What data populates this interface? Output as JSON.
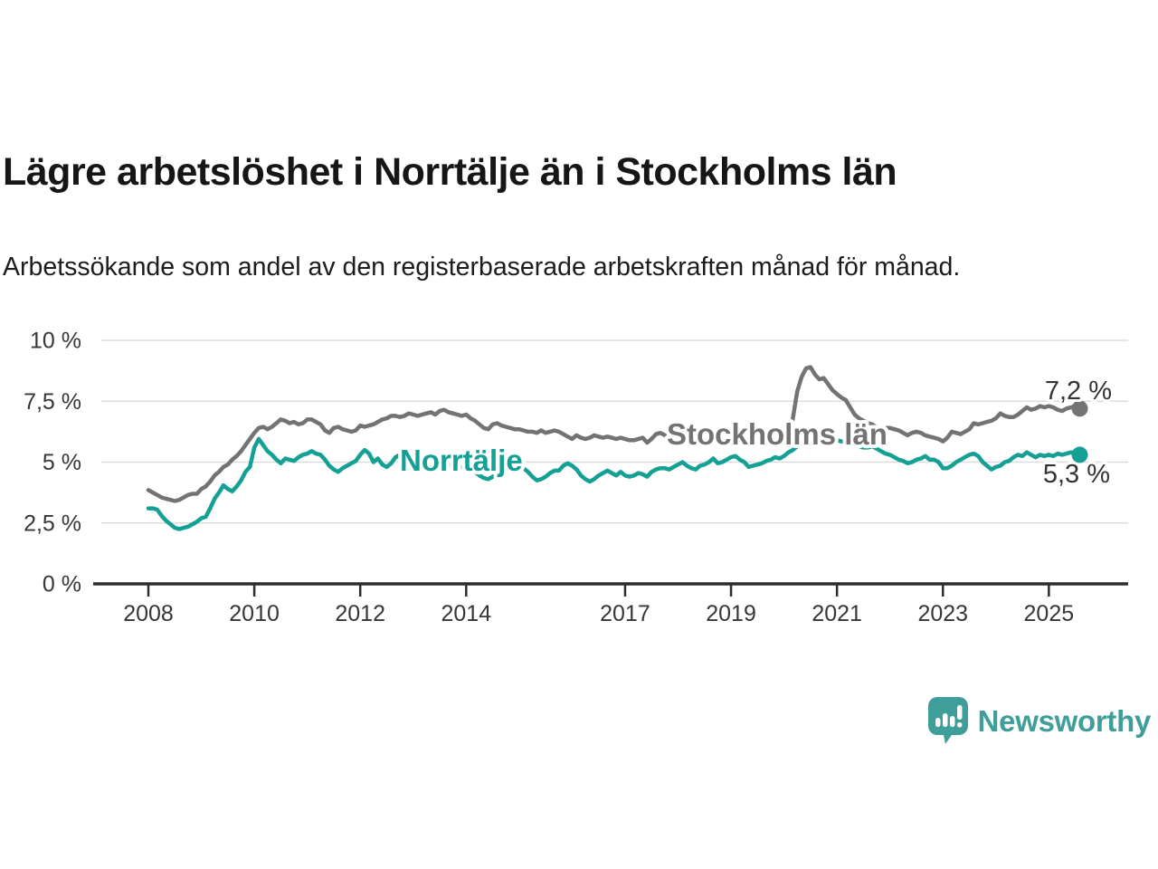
{
  "header": {
    "title": "Lägre arbetslöshet i Norrtälje än i Stockholms län",
    "subtitle": "Arbetssökande som andel av den registerbaserade arbetskraften månad för månad."
  },
  "branding": {
    "name": "Newsworthy",
    "icon": "newsworthy-speech-bubble-bar-chart-icon",
    "color": "#3f9e99"
  },
  "colors": {
    "norrtalje_line": "#14a094",
    "stockholm_line": "#737373",
    "axis_text": "#363636",
    "gridline": "#dcdcdc",
    "axis_line": "#2d2d2d",
    "end_label_text": "#333333"
  },
  "chart_data": {
    "type": "line",
    "unit": "%",
    "frequency": "monthly",
    "x_start": "2008-01",
    "x_end": "2025-08",
    "grid": true,
    "ylim": [
      0,
      10
    ],
    "y_ticks": [
      0,
      2.5,
      5,
      7.5,
      10
    ],
    "y_tick_labels": [
      "0 %",
      "2,5 %",
      "5 %",
      "7,5 %",
      "10 %"
    ],
    "x_tick_years": [
      2008,
      2010,
      2012,
      2014,
      2017,
      2019,
      2021,
      2023,
      2025
    ],
    "x_tick_labels": [
      "2008",
      "2010",
      "2012",
      "2014",
      "2017",
      "2019",
      "2021",
      "2023",
      "2025"
    ],
    "series": [
      {
        "name": "Stockholms län",
        "color": "#737373",
        "end_label": "7,2 %",
        "end_value": 7.2,
        "values": [
          3.85,
          3.75,
          3.65,
          3.55,
          3.5,
          3.45,
          3.4,
          3.45,
          3.55,
          3.65,
          3.7,
          3.7,
          3.9,
          4.0,
          4.2,
          4.45,
          4.6,
          4.8,
          4.9,
          5.1,
          5.25,
          5.45,
          5.7,
          5.95,
          6.2,
          6.4,
          6.45,
          6.35,
          6.45,
          6.6,
          6.75,
          6.7,
          6.6,
          6.65,
          6.55,
          6.6,
          6.75,
          6.75,
          6.65,
          6.55,
          6.3,
          6.2,
          6.4,
          6.45,
          6.35,
          6.3,
          6.25,
          6.3,
          6.5,
          6.45,
          6.5,
          6.55,
          6.65,
          6.75,
          6.8,
          6.9,
          6.9,
          6.85,
          6.9,
          7.0,
          6.95,
          6.9,
          6.95,
          7.0,
          7.05,
          6.95,
          7.1,
          7.15,
          7.05,
          7.0,
          6.95,
          6.9,
          6.95,
          6.8,
          6.7,
          6.55,
          6.4,
          6.35,
          6.55,
          6.6,
          6.5,
          6.45,
          6.4,
          6.35,
          6.35,
          6.3,
          6.25,
          6.25,
          6.2,
          6.3,
          6.2,
          6.25,
          6.3,
          6.25,
          6.15,
          6.05,
          5.95,
          6.1,
          6.0,
          5.95,
          6.0,
          6.1,
          6.05,
          6.0,
          6.05,
          6.0,
          5.95,
          6.0,
          5.95,
          5.9,
          5.9,
          5.95,
          6.0,
          5.8,
          5.95,
          6.15,
          6.2,
          6.1,
          6.05,
          6.1,
          6.15,
          6.1,
          6.05,
          6.0,
          5.95,
          6.0,
          6.05,
          6.1,
          6.05,
          6.0,
          5.95,
          6.0,
          6.05,
          6.1,
          6.0,
          5.95,
          5.9,
          5.85,
          5.9,
          5.95,
          5.9,
          5.85,
          5.8,
          5.75,
          5.8,
          6.0,
          6.8,
          7.9,
          8.5,
          8.85,
          8.9,
          8.6,
          8.4,
          8.45,
          8.2,
          7.95,
          7.8,
          7.65,
          7.55,
          7.25,
          6.95,
          6.8,
          6.7,
          6.6,
          6.55,
          6.4,
          6.3,
          6.4,
          6.4,
          6.35,
          6.3,
          6.2,
          6.1,
          6.2,
          6.25,
          6.2,
          6.1,
          6.05,
          6.0,
          5.95,
          5.85,
          6.0,
          6.25,
          6.2,
          6.15,
          6.25,
          6.35,
          6.6,
          6.55,
          6.6,
          6.65,
          6.7,
          6.8,
          7.0,
          6.9,
          6.85,
          6.85,
          6.95,
          7.1,
          7.25,
          7.15,
          7.2,
          7.3,
          7.25,
          7.3,
          7.25,
          7.15,
          7.1,
          7.2,
          7.25,
          7.3,
          7.2
        ]
      },
      {
        "name": "Norrtälje",
        "color": "#14a094",
        "end_label": "5,3 %",
        "end_value": 5.3,
        "values": [
          3.1,
          3.1,
          3.05,
          2.8,
          2.6,
          2.45,
          2.3,
          2.25,
          2.3,
          2.35,
          2.45,
          2.55,
          2.7,
          2.75,
          3.1,
          3.5,
          3.75,
          4.05,
          3.9,
          3.8,
          4.0,
          4.25,
          4.6,
          4.8,
          5.6,
          5.95,
          5.7,
          5.45,
          5.3,
          5.1,
          4.95,
          5.15,
          5.1,
          5.05,
          5.2,
          5.3,
          5.35,
          5.45,
          5.35,
          5.3,
          5.1,
          4.85,
          4.7,
          4.6,
          4.75,
          4.85,
          4.95,
          5.05,
          5.3,
          5.5,
          5.35,
          5.0,
          5.15,
          4.9,
          4.8,
          4.95,
          5.2,
          5.3,
          5.1,
          5.2,
          5.35,
          5.25,
          5.15,
          5.0,
          4.9,
          4.8,
          4.75,
          4.85,
          4.9,
          4.8,
          4.75,
          4.8,
          4.8,
          4.7,
          4.6,
          4.45,
          4.35,
          4.3,
          4.4,
          4.5,
          4.55,
          4.65,
          4.7,
          4.75,
          4.8,
          4.75,
          4.6,
          4.4,
          4.25,
          4.3,
          4.4,
          4.55,
          4.65,
          4.65,
          4.85,
          4.95,
          4.85,
          4.7,
          4.45,
          4.3,
          4.2,
          4.3,
          4.45,
          4.55,
          4.65,
          4.55,
          4.45,
          4.6,
          4.45,
          4.4,
          4.45,
          4.55,
          4.5,
          4.4,
          4.6,
          4.7,
          4.75,
          4.75,
          4.7,
          4.8,
          4.9,
          5.0,
          4.85,
          4.75,
          4.7,
          4.85,
          4.9,
          5.0,
          5.15,
          4.95,
          5.0,
          5.1,
          5.2,
          5.25,
          5.1,
          5.0,
          4.8,
          4.85,
          4.9,
          4.95,
          5.05,
          5.1,
          5.2,
          5.15,
          5.25,
          5.4,
          5.5,
          5.65,
          5.75,
          5.9,
          5.95,
          5.9,
          5.85,
          5.8,
          5.8,
          5.85,
          5.9,
          5.85,
          5.8,
          5.75,
          5.7,
          5.65,
          5.6,
          5.6,
          5.65,
          5.55,
          5.45,
          5.35,
          5.3,
          5.2,
          5.1,
          5.05,
          4.95,
          5.0,
          5.1,
          5.15,
          5.25,
          5.1,
          5.1,
          5.0,
          4.75,
          4.75,
          4.85,
          5.0,
          5.1,
          5.2,
          5.3,
          5.35,
          5.25,
          5.0,
          4.85,
          4.7,
          4.8,
          4.85,
          5.0,
          5.05,
          5.2,
          5.3,
          5.25,
          5.4,
          5.3,
          5.2,
          5.3,
          5.25,
          5.3,
          5.25,
          5.35,
          5.3,
          5.35,
          5.4,
          5.35,
          5.3
        ]
      }
    ]
  }
}
